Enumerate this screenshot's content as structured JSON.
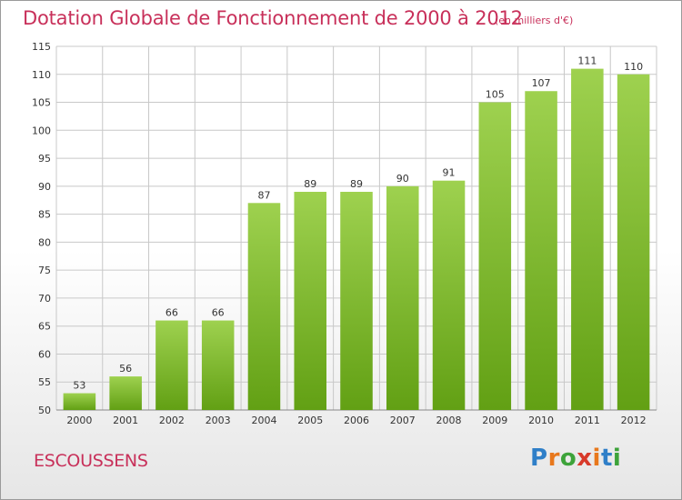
{
  "header": {
    "title": "Dotation Globale de Fonctionnement de 2000 à 2012",
    "unit": "(en milliers d'€)"
  },
  "footer": {
    "town": "ESCOUSSENS",
    "logo": "Proxiti"
  },
  "colors": {
    "text_accent": "#c8305a",
    "bar_top": "#9ed14f",
    "bar_bottom": "#62a014",
    "grid": "#c8c8c8"
  },
  "chart_data": {
    "type": "bar",
    "title": "Dotation Globale de Fonctionnement de 2000 à 2012",
    "subtitle": "(en milliers d'€)",
    "categories": [
      "2000",
      "2001",
      "2002",
      "2003",
      "2004",
      "2005",
      "2006",
      "2007",
      "2008",
      "2009",
      "2010",
      "2011",
      "2012"
    ],
    "values": [
      53,
      56,
      66,
      66,
      87,
      89,
      89,
      90,
      91,
      105,
      107,
      111,
      110
    ],
    "ylim": [
      50,
      115
    ],
    "yticks": [
      50,
      55,
      60,
      65,
      70,
      75,
      80,
      85,
      90,
      95,
      100,
      105,
      110,
      115
    ],
    "grid": true,
    "data_labels": true
  }
}
